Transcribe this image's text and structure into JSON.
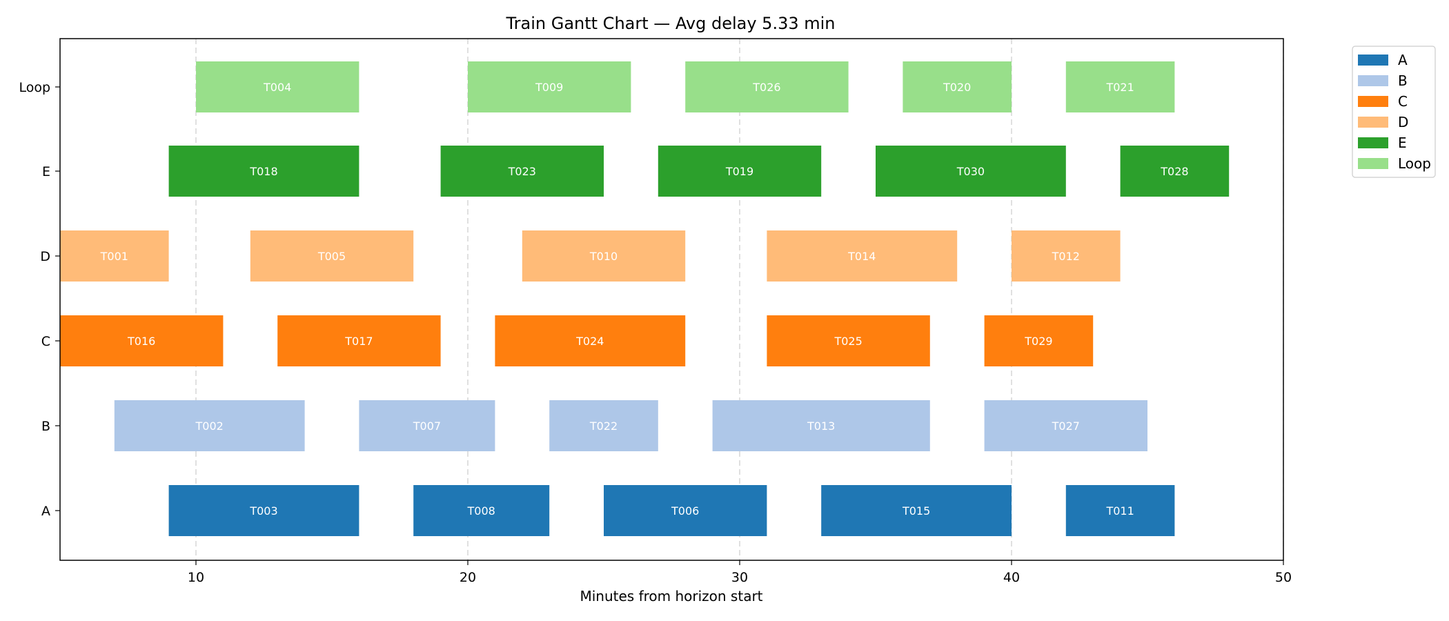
{
  "chart_data": {
    "type": "gantt",
    "title": "Train Gantt Chart — Avg delay 5.33 min",
    "xlabel": "Minutes from horizon start",
    "ylabel": "",
    "xlim": [
      5,
      50
    ],
    "xticks": [
      10,
      20,
      30,
      40,
      50
    ],
    "grid": "vertical-dashed",
    "legend_position": "outside-top-right",
    "categories": [
      "A",
      "B",
      "C",
      "D",
      "E",
      "Loop"
    ],
    "colors": {
      "A": "#1f77b4",
      "B": "#aec7e8",
      "C": "#ff7f0e",
      "D": "#ffbb78",
      "E": "#2ca02c",
      "Loop": "#98df8a"
    },
    "tasks": [
      {
        "track": "A",
        "label": "T003",
        "start": 9,
        "end": 16
      },
      {
        "track": "A",
        "label": "T008",
        "start": 18,
        "end": 23
      },
      {
        "track": "A",
        "label": "T006",
        "start": 25,
        "end": 31
      },
      {
        "track": "A",
        "label": "T015",
        "start": 33,
        "end": 40
      },
      {
        "track": "A",
        "label": "T011",
        "start": 42,
        "end": 46
      },
      {
        "track": "B",
        "label": "T002",
        "start": 7,
        "end": 14
      },
      {
        "track": "B",
        "label": "T007",
        "start": 16,
        "end": 21
      },
      {
        "track": "B",
        "label": "T022",
        "start": 23,
        "end": 27
      },
      {
        "track": "B",
        "label": "T013",
        "start": 29,
        "end": 37
      },
      {
        "track": "B",
        "label": "T027",
        "start": 39,
        "end": 45
      },
      {
        "track": "C",
        "label": "T016",
        "start": 5,
        "end": 11
      },
      {
        "track": "C",
        "label": "T017",
        "start": 13,
        "end": 19
      },
      {
        "track": "C",
        "label": "T024",
        "start": 21,
        "end": 28
      },
      {
        "track": "C",
        "label": "T025",
        "start": 31,
        "end": 37
      },
      {
        "track": "C",
        "label": "T029",
        "start": 39,
        "end": 43
      },
      {
        "track": "D",
        "label": "T001",
        "start": 5,
        "end": 9
      },
      {
        "track": "D",
        "label": "T005",
        "start": 12,
        "end": 18
      },
      {
        "track": "D",
        "label": "T010",
        "start": 22,
        "end": 28
      },
      {
        "track": "D",
        "label": "T014",
        "start": 31,
        "end": 38
      },
      {
        "track": "D",
        "label": "T012",
        "start": 40,
        "end": 44
      },
      {
        "track": "E",
        "label": "T018",
        "start": 9,
        "end": 16
      },
      {
        "track": "E",
        "label": "T023",
        "start": 19,
        "end": 25
      },
      {
        "track": "E",
        "label": "T019",
        "start": 27,
        "end": 33
      },
      {
        "track": "E",
        "label": "T030",
        "start": 35,
        "end": 42
      },
      {
        "track": "E",
        "label": "T028",
        "start": 44,
        "end": 48
      },
      {
        "track": "Loop",
        "label": "T004",
        "start": 10,
        "end": 16
      },
      {
        "track": "Loop",
        "label": "T009",
        "start": 20,
        "end": 26
      },
      {
        "track": "Loop",
        "label": "T026",
        "start": 28,
        "end": 34
      },
      {
        "track": "Loop",
        "label": "T020",
        "start": 36,
        "end": 40
      },
      {
        "track": "Loop",
        "label": "T021",
        "start": 42,
        "end": 46
      }
    ]
  }
}
